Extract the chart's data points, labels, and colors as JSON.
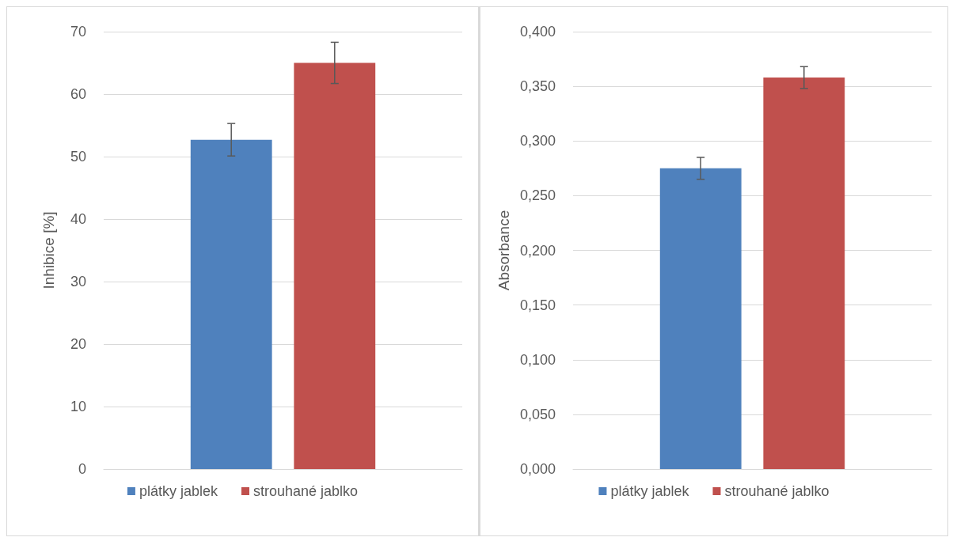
{
  "chart_data": [
    {
      "type": "bar",
      "ylabel": "Inhibice [%]",
      "categories": [
        null
      ],
      "series": [
        {
          "name": "plátky jablek",
          "color": "#4f81bd",
          "values": [
            52.7
          ],
          "errors": [
            2.6
          ]
        },
        {
          "name": "strouhané jablko",
          "color": "#c0504d",
          "values": [
            65.0
          ],
          "errors": [
            3.3
          ]
        }
      ],
      "ylim": [
        0,
        70
      ],
      "yticks": [
        0,
        10,
        20,
        30,
        40,
        50,
        60,
        70
      ],
      "grid": "y",
      "legend": "bottom"
    },
    {
      "type": "bar",
      "ylabel": "Absorbance",
      "categories": [
        null
      ],
      "series": [
        {
          "name": "plátky jablek",
          "color": "#4f81bd",
          "values": [
            0.275
          ],
          "errors": [
            0.01
          ]
        },
        {
          "name": "strouhané jablko",
          "color": "#c0504d",
          "values": [
            0.358
          ],
          "errors": [
            0.01
          ]
        }
      ],
      "ylim": [
        0,
        0.4
      ],
      "yticks": [
        {
          "value": 0,
          "label": "0,000"
        },
        {
          "value": 0.05,
          "label": "0,050"
        },
        {
          "value": 0.1,
          "label": "0,100"
        },
        {
          "value": 0.15,
          "label": "0,150"
        },
        {
          "value": 0.2,
          "label": "0,200"
        },
        {
          "value": 0.25,
          "label": "0,250"
        },
        {
          "value": 0.3,
          "label": "0,300"
        },
        {
          "value": 0.35,
          "label": "0,350"
        },
        {
          "value": 0.4,
          "label": "0,400"
        }
      ],
      "grid": "y",
      "legend": "bottom"
    }
  ]
}
